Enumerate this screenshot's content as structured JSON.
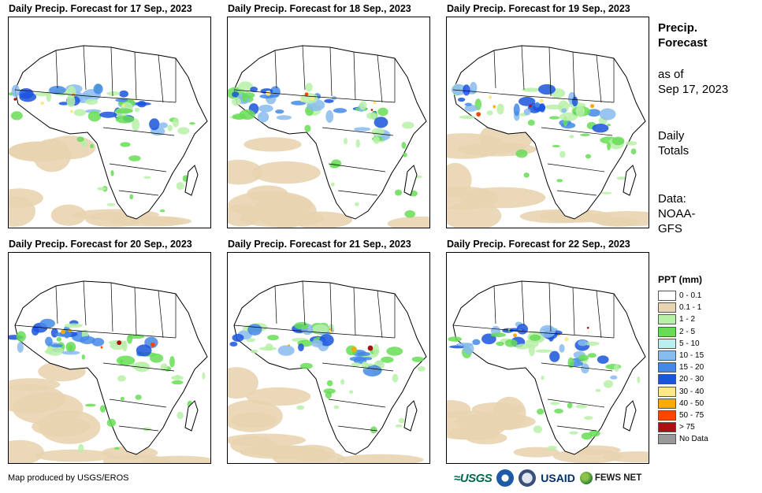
{
  "panels": [
    {
      "title": "Daily Precip. Forecast for 17 Sep., 2023"
    },
    {
      "title": "Daily Precip. Forecast for 18 Sep., 2023"
    },
    {
      "title": "Daily Precip. Forecast for 19 Sep., 2023"
    },
    {
      "title": "Daily Precip. Forecast for 20 Sep., 2023"
    },
    {
      "title": "Daily Precip. Forecast for 21 Sep., 2023"
    },
    {
      "title": "Daily Precip. Forecast for 22 Sep., 2023"
    }
  ],
  "side": {
    "title_line1": "Precip.",
    "title_line2": "Forecast",
    "asof_line1": "as of",
    "asof_line2": "Sep 17, 2023",
    "totals_line1": "Daily",
    "totals_line2": "Totals",
    "data_line1": "Data:",
    "data_line2": "NOAA-",
    "data_line3": "GFS"
  },
  "legend": {
    "title": "PPT (mm)",
    "items": [
      {
        "label": "0 - 0.1",
        "color": "#ffffff"
      },
      {
        "label": "0.1 - 1",
        "color": "#e8d4b0"
      },
      {
        "label": "1 - 2",
        "color": "#b8f0a8"
      },
      {
        "label": "2 - 5",
        "color": "#66dd55"
      },
      {
        "label": "5 - 10",
        "color": "#b8f0f0"
      },
      {
        "label": "10 - 15",
        "color": "#88bbee"
      },
      {
        "label": "15 - 20",
        "color": "#4488e8"
      },
      {
        "label": "20 - 30",
        "color": "#1a55dd"
      },
      {
        "label": "30 - 40",
        "color": "#ffe888"
      },
      {
        "label": "40 - 50",
        "color": "#ffaa00"
      },
      {
        "label": "50 - 75",
        "color": "#ff4400"
      },
      {
        "label": "> 75",
        "color": "#aa1111"
      },
      {
        "label": "No Data",
        "color": "#999999"
      }
    ]
  },
  "footer": {
    "produced_by": "Map produced by USGS/EROS",
    "logo_usgs": "≈USGS",
    "logo_usaid": "USAID",
    "logo_fews": "FEWS NET"
  }
}
